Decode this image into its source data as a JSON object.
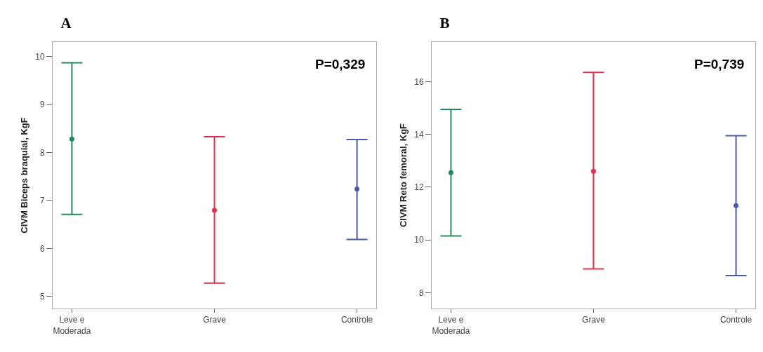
{
  "chart_data": [
    {
      "type": "scatter",
      "title": "A",
      "ylabel": "CIVM Biceps braquial, KgF",
      "categories": [
        "Leve e\nModerada",
        "Grave",
        "Controle"
      ],
      "values": [
        8.28,
        6.8,
        7.24
      ],
      "errors": [
        [
          6.71,
          9.87
        ],
        [
          5.28,
          8.33
        ],
        [
          6.19,
          8.27
        ]
      ],
      "colors": [
        "#23895a",
        "#e0304a",
        "#4a5aa8"
      ],
      "ylim": [
        4.75,
        10.3
      ],
      "yticks": [
        5,
        6,
        7,
        8,
        9,
        10
      ],
      "marker": "circle",
      "grid": false,
      "annotations": [
        "P=0,329"
      ]
    },
    {
      "type": "scatter",
      "title": "B",
      "ylabel": "CIVM Reto femoral, KgF",
      "categories": [
        "Leve e\nModerada",
        "Grave",
        "Controle"
      ],
      "values": [
        12.55,
        12.6,
        11.3
      ],
      "errors": [
        [
          10.15,
          14.95
        ],
        [
          8.9,
          16.35
        ],
        [
          8.65,
          13.95
        ]
      ],
      "colors": [
        "#23895a",
        "#e0304a",
        "#4a5aa8"
      ],
      "ylim": [
        7.4,
        17.5
      ],
      "yticks": [
        8,
        10,
        12,
        14,
        16
      ],
      "marker": "circle",
      "grid": false,
      "annotations": [
        "P=0,739"
      ]
    }
  ]
}
